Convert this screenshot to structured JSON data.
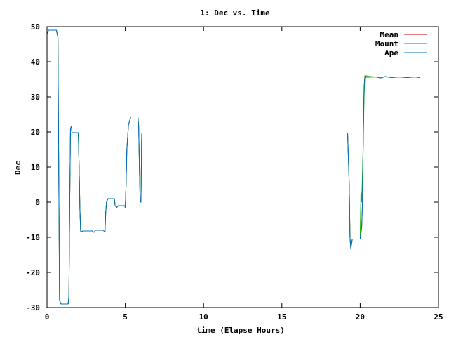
{
  "chart_data": {
    "type": "line",
    "title": "1: Dec vs. Time",
    "xlabel": "time (Elapse Hours)",
    "ylabel": "Dec",
    "xlim": [
      0,
      25
    ],
    "ylim": [
      -30,
      50
    ],
    "xticks": [
      0,
      5,
      10,
      15,
      20,
      25
    ],
    "yticks": [
      -30,
      -20,
      -10,
      0,
      10,
      20,
      30,
      40,
      50
    ],
    "grid": false,
    "legend_position": "top-right",
    "series": [
      {
        "name": "Mean",
        "color": "#cc0000",
        "points": [
          [
            0,
            48
          ],
          [
            0.1,
            49
          ],
          [
            0.6,
            49
          ],
          [
            0.7,
            47
          ],
          [
            0.75,
            10
          ],
          [
            0.8,
            -28
          ],
          [
            0.9,
            -29
          ],
          [
            1.35,
            -29
          ],
          [
            1.4,
            -27
          ],
          [
            1.45,
            0
          ],
          [
            1.5,
            21
          ],
          [
            1.55,
            21.5
          ],
          [
            1.6,
            19.8
          ],
          [
            2.0,
            19.8
          ],
          [
            2.05,
            10
          ],
          [
            2.1,
            -2
          ],
          [
            2.15,
            -8.5
          ],
          [
            2.3,
            -8.2
          ],
          [
            2.9,
            -8.2
          ],
          [
            3.0,
            -8.6
          ],
          [
            3.1,
            -8.0
          ],
          [
            3.6,
            -8.0
          ],
          [
            3.7,
            -8.6
          ],
          [
            3.75,
            -3
          ],
          [
            3.8,
            0
          ],
          [
            3.9,
            1
          ],
          [
            4.3,
            1
          ],
          [
            4.35,
            -1
          ],
          [
            4.45,
            -1.5
          ],
          [
            4.55,
            -1
          ],
          [
            4.95,
            -1
          ],
          [
            5.0,
            -1.5
          ],
          [
            5.05,
            5
          ],
          [
            5.1,
            15
          ],
          [
            5.2,
            22
          ],
          [
            5.35,
            24.3
          ],
          [
            5.8,
            24.3
          ],
          [
            5.85,
            22
          ],
          [
            5.9,
            10
          ],
          [
            5.95,
            0
          ],
          [
            6.0,
            0
          ],
          [
            6.05,
            19.7
          ],
          [
            19.2,
            19.7
          ],
          [
            19.3,
            5
          ],
          [
            19.35,
            -10
          ],
          [
            19.4,
            -13.2
          ],
          [
            19.5,
            -10.5
          ],
          [
            20.0,
            -10.5
          ],
          [
            20.1,
            -7
          ],
          [
            20.15,
            0
          ],
          [
            20.2,
            20
          ],
          [
            20.25,
            33
          ],
          [
            20.3,
            36
          ],
          [
            20.4,
            35.6
          ],
          [
            21,
            35.7
          ],
          [
            21.3,
            35.4
          ],
          [
            21.6,
            35.8
          ],
          [
            22,
            35.5
          ],
          [
            22.5,
            35.7
          ],
          [
            23,
            35.5
          ],
          [
            23.5,
            35.7
          ],
          [
            23.8,
            35.5
          ]
        ]
      },
      {
        "name": "Mount",
        "color": "#00b000",
        "points": [
          [
            0,
            48
          ],
          [
            0.1,
            49
          ],
          [
            0.6,
            49
          ],
          [
            0.7,
            47
          ],
          [
            0.75,
            10
          ],
          [
            0.8,
            -28
          ],
          [
            0.9,
            -29
          ],
          [
            1.35,
            -29
          ],
          [
            1.4,
            -27
          ],
          [
            1.45,
            0
          ],
          [
            1.5,
            21
          ],
          [
            1.55,
            21.5
          ],
          [
            1.6,
            19.8
          ],
          [
            2.0,
            19.8
          ],
          [
            2.05,
            10
          ],
          [
            2.1,
            -2
          ],
          [
            2.15,
            -8.5
          ],
          [
            2.3,
            -8.2
          ],
          [
            2.9,
            -8.2
          ],
          [
            3.0,
            -8.6
          ],
          [
            3.1,
            -8.0
          ],
          [
            3.6,
            -8.0
          ],
          [
            3.7,
            -8.6
          ],
          [
            3.75,
            -3
          ],
          [
            3.8,
            0
          ],
          [
            3.9,
            1
          ],
          [
            4.3,
            1
          ],
          [
            4.35,
            -1
          ],
          [
            4.45,
            -1.5
          ],
          [
            4.55,
            -1
          ],
          [
            4.95,
            -1
          ],
          [
            5.0,
            -1.5
          ],
          [
            5.05,
            5
          ],
          [
            5.1,
            15
          ],
          [
            5.2,
            22
          ],
          [
            5.35,
            24.3
          ],
          [
            5.8,
            24.3
          ],
          [
            5.85,
            22
          ],
          [
            5.9,
            10
          ],
          [
            5.95,
            0
          ],
          [
            6.0,
            0
          ],
          [
            6.05,
            19.7
          ],
          [
            19.2,
            19.7
          ],
          [
            19.3,
            5
          ],
          [
            19.35,
            -10
          ],
          [
            19.4,
            -13.2
          ],
          [
            19.5,
            -10.5
          ],
          [
            20.0,
            -10.5
          ],
          [
            20.05,
            3
          ],
          [
            20.1,
            0
          ],
          [
            20.2,
            18
          ],
          [
            20.25,
            30
          ],
          [
            20.3,
            36
          ],
          [
            20.4,
            36
          ],
          [
            20.6,
            35.8
          ],
          [
            21,
            35.7
          ],
          [
            21.3,
            35.4
          ],
          [
            21.6,
            35.8
          ],
          [
            22,
            35.5
          ],
          [
            22.5,
            35.7
          ],
          [
            23,
            35.5
          ],
          [
            23.5,
            35.7
          ],
          [
            23.8,
            35.5
          ]
        ]
      },
      {
        "name": "Ape",
        "color": "#0070c8",
        "points": [
          [
            0,
            48
          ],
          [
            0.1,
            49
          ],
          [
            0.6,
            49
          ],
          [
            0.7,
            47
          ],
          [
            0.75,
            10
          ],
          [
            0.8,
            -28
          ],
          [
            0.9,
            -29
          ],
          [
            1.35,
            -29
          ],
          [
            1.4,
            -27
          ],
          [
            1.45,
            0
          ],
          [
            1.5,
            21
          ],
          [
            1.55,
            21.5
          ],
          [
            1.6,
            19.8
          ],
          [
            2.0,
            19.8
          ],
          [
            2.05,
            10
          ],
          [
            2.1,
            -2
          ],
          [
            2.15,
            -8.5
          ],
          [
            2.3,
            -8.2
          ],
          [
            2.9,
            -8.2
          ],
          [
            3.0,
            -8.6
          ],
          [
            3.1,
            -8.0
          ],
          [
            3.6,
            -8.0
          ],
          [
            3.7,
            -8.6
          ],
          [
            3.75,
            -3
          ],
          [
            3.8,
            0
          ],
          [
            3.9,
            1
          ],
          [
            4.3,
            1
          ],
          [
            4.35,
            -1
          ],
          [
            4.45,
            -1.5
          ],
          [
            4.55,
            -1
          ],
          [
            4.95,
            -1
          ],
          [
            5.0,
            -1.5
          ],
          [
            5.05,
            5
          ],
          [
            5.1,
            15
          ],
          [
            5.2,
            22
          ],
          [
            5.35,
            24.3
          ],
          [
            5.8,
            24.3
          ],
          [
            5.85,
            22
          ],
          [
            5.9,
            10
          ],
          [
            5.95,
            0
          ],
          [
            6.0,
            0
          ],
          [
            6.05,
            19.7
          ],
          [
            19.2,
            19.7
          ],
          [
            19.3,
            5
          ],
          [
            19.35,
            -10
          ],
          [
            19.4,
            -13.2
          ],
          [
            19.5,
            -10.5
          ],
          [
            20.0,
            -10.5
          ],
          [
            20.1,
            -7
          ],
          [
            20.15,
            0
          ],
          [
            20.2,
            20
          ],
          [
            20.25,
            33
          ],
          [
            20.3,
            35.5
          ],
          [
            20.4,
            35.6
          ],
          [
            21,
            35.7
          ],
          [
            21.3,
            35.4
          ],
          [
            21.6,
            35.8
          ],
          [
            22,
            35.5
          ],
          [
            22.5,
            35.7
          ],
          [
            23,
            35.5
          ],
          [
            23.5,
            35.7
          ],
          [
            23.8,
            35.5
          ]
        ]
      }
    ]
  }
}
